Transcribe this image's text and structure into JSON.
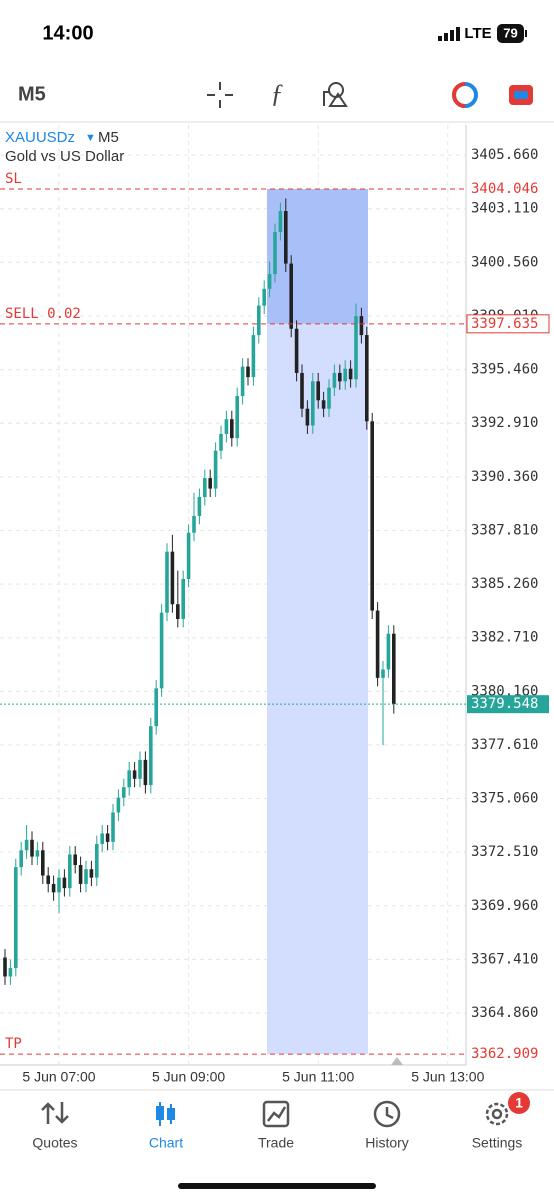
{
  "status_bar": {
    "time": "14:00",
    "network": "LTE",
    "battery": "79"
  },
  "chart_data": {
    "type": "candlestick",
    "symbol": "XAUUSDz",
    "timeframe": "M5",
    "description": "Gold vs US Dollar",
    "open": [
      3367.5,
      3366.6,
      3367.0,
      3371.8,
      3372.6,
      3373.1,
      3372.3,
      3372.6,
      3371.4,
      3371.0,
      3370.6,
      3371.3,
      3370.8,
      3372.4,
      3371.9,
      3371.0,
      3371.7,
      3371.3,
      3372.9,
      3373.4,
      3373.0,
      3374.4,
      3375.1,
      3375.6,
      3376.4,
      3376.0,
      3376.9,
      3375.7,
      3378.5,
      3380.3,
      3383.9,
      3386.8,
      3384.3,
      3383.6,
      3385.5,
      3387.7,
      3388.5,
      3389.4,
      3390.3,
      3389.8,
      3391.6,
      3392.4,
      3393.1,
      3392.2,
      3394.2,
      3395.6,
      3395.1,
      3397.1,
      3398.5,
      3399.3,
      3400.0,
      3402.0,
      3403.0,
      3400.5,
      3397.4,
      3395.3,
      3393.6,
      3392.8,
      3394.9,
      3394.0,
      3393.6,
      3394.6,
      3395.3,
      3394.9,
      3395.5,
      3395.0,
      3398.0,
      3397.1,
      3393.0,
      3384.0,
      3380.8,
      3381.2,
      3382.9
    ],
    "high": [
      3367.9,
      3367.4,
      3372.2,
      3373.0,
      3373.8,
      3373.5,
      3373.0,
      3373.0,
      3371.8,
      3371.4,
      3371.7,
      3371.7,
      3372.8,
      3372.8,
      3372.3,
      3372.1,
      3372.1,
      3373.3,
      3373.8,
      3373.8,
      3374.8,
      3375.5,
      3376.0,
      3376.8,
      3376.8,
      3377.3,
      3377.3,
      3378.9,
      3380.7,
      3384.3,
      3387.2,
      3387.6,
      3385.9,
      3385.9,
      3388.1,
      3389.6,
      3389.8,
      3390.7,
      3390.7,
      3392.0,
      3392.8,
      3393.5,
      3393.5,
      3394.6,
      3396.0,
      3396.0,
      3397.5,
      3398.9,
      3399.7,
      3400.6,
      3402.4,
      3403.4,
      3403.6,
      3400.9,
      3397.8,
      3395.7,
      3394.0,
      3395.3,
      3395.3,
      3394.4,
      3395.0,
      3395.7,
      3395.7,
      3395.9,
      3395.9,
      3398.6,
      3398.4,
      3397.5,
      3393.4,
      3384.4,
      3381.6,
      3383.3,
      3383.3
    ],
    "low": [
      3366.2,
      3366.2,
      3366.6,
      3371.4,
      3372.2,
      3371.9,
      3371.9,
      3371.0,
      3370.6,
      3370.2,
      3369.6,
      3370.4,
      3370.4,
      3371.5,
      3370.6,
      3370.6,
      3370.9,
      3370.9,
      3372.5,
      3372.6,
      3372.6,
      3374.0,
      3374.7,
      3375.2,
      3375.6,
      3375.6,
      3375.3,
      3375.3,
      3378.1,
      3379.9,
      3383.5,
      3383.9,
      3383.2,
      3383.2,
      3385.1,
      3387.3,
      3388.1,
      3389.0,
      3389.4,
      3389.4,
      3391.2,
      3392.0,
      3391.8,
      3391.8,
      3393.8,
      3394.7,
      3394.7,
      3396.7,
      3398.1,
      3398.9,
      3399.6,
      3401.6,
      3400.1,
      3397.0,
      3394.9,
      3393.2,
      3392.4,
      3392.4,
      3393.6,
      3393.2,
      3393.2,
      3394.2,
      3394.5,
      3394.5,
      3394.6,
      3394.6,
      3396.7,
      3392.6,
      3383.6,
      3380.4,
      3377.6,
      3380.8,
      3379.1
    ],
    "close": [
      3366.6,
      3367.0,
      3371.8,
      3372.6,
      3373.1,
      3372.3,
      3372.6,
      3371.4,
      3371.0,
      3370.6,
      3371.3,
      3370.8,
      3372.4,
      3371.9,
      3371.0,
      3371.7,
      3371.3,
      3372.9,
      3373.4,
      3373.0,
      3374.4,
      3375.1,
      3375.6,
      3376.4,
      3376.0,
      3376.9,
      3375.7,
      3378.5,
      3380.3,
      3383.9,
      3386.8,
      3384.3,
      3383.6,
      3385.5,
      3387.7,
      3388.5,
      3389.4,
      3390.3,
      3389.8,
      3391.6,
      3392.4,
      3393.1,
      3392.2,
      3394.2,
      3395.6,
      3395.1,
      3397.1,
      3398.5,
      3399.3,
      3400.0,
      3402.0,
      3403.0,
      3400.5,
      3397.4,
      3395.3,
      3393.6,
      3392.8,
      3394.9,
      3394.0,
      3393.6,
      3394.6,
      3395.3,
      3394.9,
      3395.5,
      3395.0,
      3398.0,
      3397.1,
      3393.0,
      3384.0,
      3380.8,
      3381.2,
      3382.9,
      3379.548
    ],
    "up_color": "#26a69a",
    "down_color": "#222222",
    "ylim": [
      3362.39,
      3407.09
    ],
    "yticks": [
      {
        "value": 3405.66,
        "label": "3405.660"
      },
      {
        "value": 3403.11,
        "label": "3403.110"
      },
      {
        "value": 3400.56,
        "label": "3400.560"
      },
      {
        "value": 3398.01,
        "label": "3398.010"
      },
      {
        "value": 3395.46,
        "label": "3395.460"
      },
      {
        "value": 3392.91,
        "label": "3392.910"
      },
      {
        "value": 3390.36,
        "label": "3390.360"
      },
      {
        "value": 3387.81,
        "label": "3387.810"
      },
      {
        "value": 3385.26,
        "label": "3385.260"
      },
      {
        "value": 3382.71,
        "label": "3382.710"
      },
      {
        "value": 3380.16,
        "label": "3380.160"
      },
      {
        "value": 3377.61,
        "label": "3377.610"
      },
      {
        "value": 3375.06,
        "label": "3375.060"
      },
      {
        "value": 3372.51,
        "label": "3372.510"
      },
      {
        "value": 3369.96,
        "label": "3369.960"
      },
      {
        "value": 3367.41,
        "label": "3367.410"
      },
      {
        "value": 3364.86,
        "label": "3364.860"
      }
    ],
    "xticks": [
      {
        "value": 10,
        "label": "5 Jun 07:00"
      },
      {
        "value": 34,
        "label": "5 Jun 09:00"
      },
      {
        "value": 58,
        "label": "5 Jun 11:00"
      },
      {
        "value": 82,
        "label": "5 Jun 13:00"
      }
    ],
    "grid": true,
    "levels": [
      {
        "name": "SL",
        "value": 3404.046,
        "color": "#e53935",
        "label_style": "plain"
      },
      {
        "name": "SELL 0.02",
        "value": 3397.635,
        "color": "#e53935",
        "label_style": "outlined"
      },
      {
        "name": "TP",
        "value": 3362.909,
        "color": "#e53935",
        "label_style": "plain"
      },
      {
        "value": 3379.548,
        "color": "#26a69a",
        "label_style": "filled"
      }
    ]
  },
  "tab_bar": {
    "tabs": [
      "Quotes",
      "Chart",
      "Trade",
      "History",
      "Settings"
    ],
    "active": "Chart",
    "badge": "1"
  }
}
